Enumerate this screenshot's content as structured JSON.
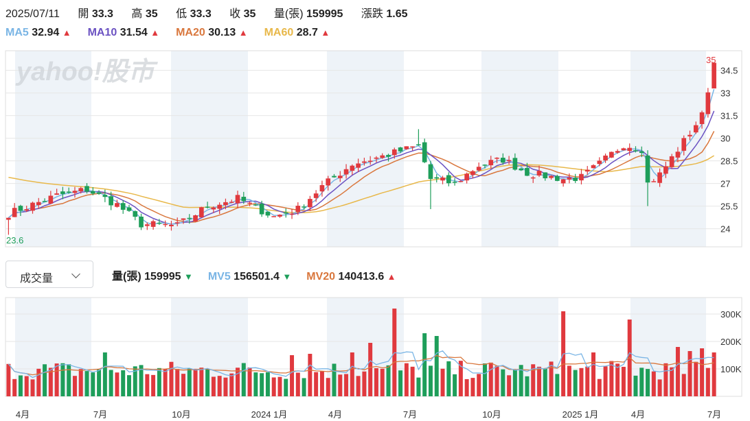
{
  "quote": {
    "date": "2025/07/11",
    "open_label": "開",
    "open": "33.3",
    "high_label": "高",
    "high": "35",
    "low_label": "低",
    "low": "33.3",
    "close_label": "收",
    "close": "35",
    "volume_label": "量(張)",
    "volume": "159995",
    "change_label": "漲跌",
    "change": "1.65"
  },
  "ma_legend": [
    {
      "label": "MA5",
      "value": "32.94",
      "color": "#7ab5e5"
    },
    {
      "label": "MA10",
      "value": "31.54",
      "color": "#6b52c2"
    },
    {
      "label": "MA20",
      "value": "30.13",
      "color": "#d9773d"
    },
    {
      "label": "MA60",
      "value": "28.7",
      "color": "#e8b84a"
    }
  ],
  "colors": {
    "up": "#e0393e",
    "down": "#1e9e5a",
    "band": "#eef3f8",
    "grid": "#e6e6e6"
  },
  "watermark": "yahoo!股市",
  "volume_panel": {
    "selector": "成交量",
    "legend": [
      {
        "label": "量(張)",
        "value": "159995",
        "dir": "down",
        "color": "#222"
      },
      {
        "label": "MV5",
        "value": "156501.4",
        "dir": "down",
        "color": "#7ab5e5"
      },
      {
        "label": "MV20",
        "value": "140413.6",
        "dir": "up",
        "color": "#d9773d"
      }
    ]
  },
  "chart_data": [
    {
      "type": "candlestick",
      "y_ticks": [
        24,
        25.5,
        27,
        28.5,
        30,
        31.5,
        33,
        34.5
      ],
      "ylim": [
        22.8,
        35.8
      ],
      "max_label": "35",
      "min_label": "23.6",
      "x_labels": [
        "4月",
        "7月",
        "10月",
        "2024 1月",
        "4月",
        "7月",
        "10月",
        "2025 1月",
        "4月",
        "7月"
      ],
      "series": [
        {
          "name": "MA5",
          "color": "#7ab5e5"
        },
        {
          "name": "MA10",
          "color": "#6b52c2"
        },
        {
          "name": "MA20",
          "color": "#d9773d"
        },
        {
          "name": "MA60",
          "color": "#e8b84a"
        }
      ]
    },
    {
      "type": "bar",
      "y_ticks": [
        "100K",
        "200K",
        "300K"
      ],
      "y_tick_values": [
        100000,
        200000,
        300000
      ],
      "ylim": [
        0,
        360000
      ],
      "series": [
        {
          "name": "MV5",
          "color": "#7ab5e5"
        },
        {
          "name": "MV20",
          "color": "#d9773d"
        }
      ]
    }
  ]
}
